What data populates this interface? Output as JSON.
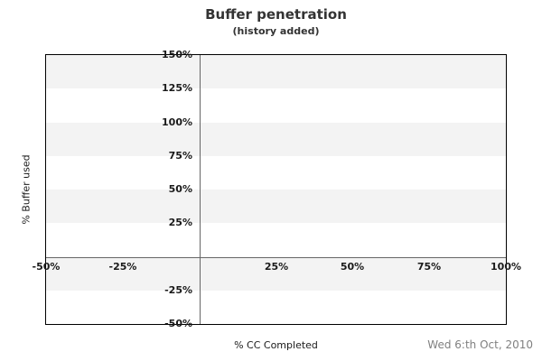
{
  "header": {
    "title": "Buffer penetration",
    "subtitle": "(history added)"
  },
  "footer": {
    "date": "Wed 6:th Oct, 2010"
  },
  "chart_data": {
    "type": "line",
    "title": "Buffer penetration",
    "subtitle": "(history added)",
    "xlabel": "% CC Completed",
    "ylabel": "% Buffer used",
    "xlim": [
      -50,
      100
    ],
    "ylim": [
      -50,
      150
    ],
    "x_ticks": [
      -50,
      -25,
      25,
      50,
      75,
      100
    ],
    "y_ticks": [
      150,
      125,
      100,
      75,
      50,
      25,
      -25,
      -50
    ],
    "tick_suffix": "%",
    "grid": false,
    "zero_axis_lines": true,
    "gray_bands_y": [
      [
        150,
        125
      ],
      [
        100,
        75
      ],
      [
        50,
        25
      ],
      [
        0,
        -25
      ]
    ],
    "series": [],
    "colors": {
      "band": "#f3f3f3",
      "frame": "#000000",
      "zero_line": "#666666",
      "title_text": "#333333",
      "tick_text": "#1a1a1a",
      "date_text": "#808080",
      "background": "#ffffff"
    }
  }
}
